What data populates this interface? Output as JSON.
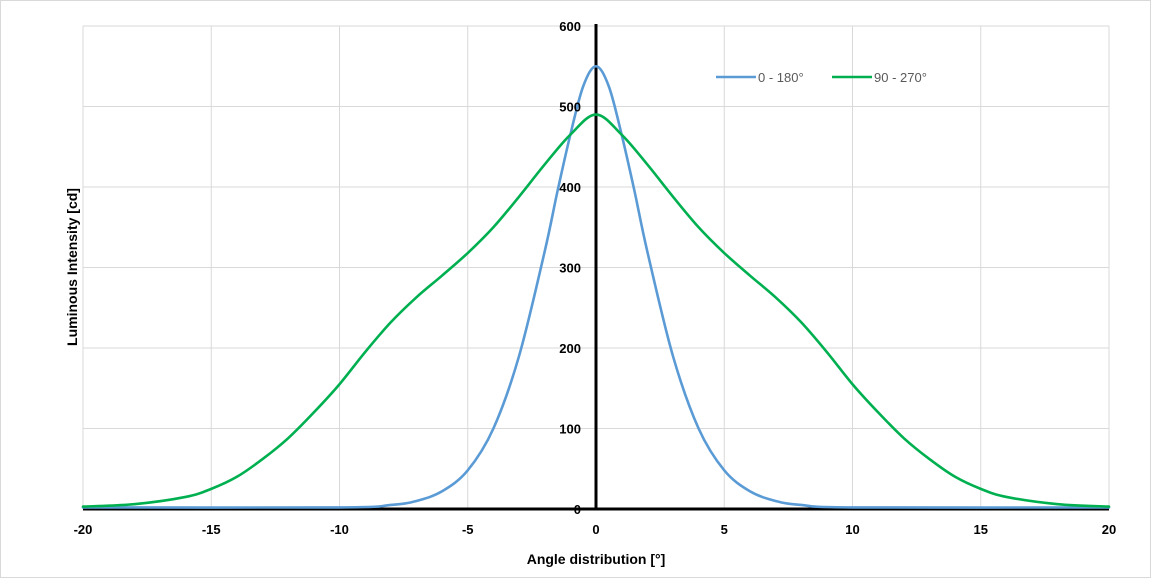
{
  "chart_data": {
    "type": "line",
    "title": "",
    "xlabel": "Angle distribution  [°]",
    "ylabel": "Luminous Intensity [cd]",
    "xlim": [
      -20,
      20
    ],
    "ylim": [
      0,
      600
    ],
    "x_ticks": [
      -20,
      -15,
      -10,
      -5,
      0,
      5,
      10,
      15,
      20
    ],
    "y_ticks": [
      0,
      100,
      200,
      300,
      400,
      500,
      600
    ],
    "grid": true,
    "legend_position": "top-right",
    "series": [
      {
        "name": "0 - 180°",
        "color": "#5b9bd5",
        "x": [
          -20,
          -10,
          -8,
          -7,
          -6,
          -5,
          -4,
          -3,
          -2,
          -1.5,
          -1,
          -0.5,
          0,
          0.5,
          1,
          1.5,
          2,
          3,
          4,
          5,
          6,
          7,
          8,
          10,
          20
        ],
        "y": [
          2,
          2,
          5,
          10,
          22,
          48,
          100,
          190,
          320,
          395,
          465,
          525,
          550,
          525,
          465,
          395,
          320,
          190,
          100,
          48,
          22,
          10,
          5,
          2,
          2
        ]
      },
      {
        "name": "90 - 270°",
        "color": "#00b050",
        "x": [
          -20,
          -18,
          -16,
          -15,
          -14,
          -13,
          -12,
          -11,
          -10,
          -9,
          -8,
          -7,
          -6,
          -5,
          -4,
          -3,
          -2,
          -1,
          0,
          1,
          2,
          3,
          4,
          5,
          6,
          7,
          8,
          9,
          10,
          11,
          12,
          13,
          14,
          15,
          16,
          18,
          20
        ],
        "y": [
          3,
          6,
          15,
          25,
          40,
          62,
          88,
          120,
          155,
          195,
          232,
          263,
          290,
          318,
          350,
          388,
          428,
          465,
          490,
          465,
          428,
          388,
          350,
          318,
          290,
          263,
          232,
          195,
          155,
          120,
          88,
          62,
          40,
          25,
          15,
          6,
          3
        ]
      }
    ]
  }
}
